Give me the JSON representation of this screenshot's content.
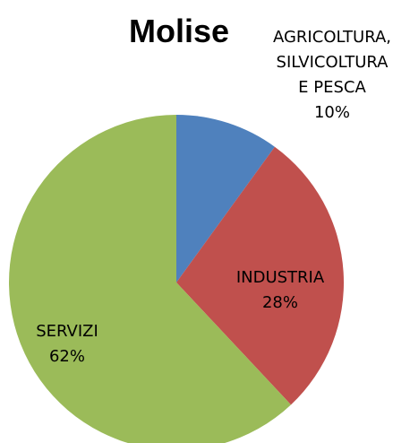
{
  "chart_data": {
    "type": "pie",
    "title": "Molise",
    "categories": [
      "AGRICOLTURA, SILVICOLTURA E PESCA",
      "INDUSTRIA",
      "SERVIZI"
    ],
    "values": [
      10,
      28,
      62
    ],
    "value_labels": [
      "10%",
      "28%",
      "62%"
    ],
    "colors": [
      "#4f81bd",
      "#c0504d",
      "#9bbb59"
    ]
  }
}
